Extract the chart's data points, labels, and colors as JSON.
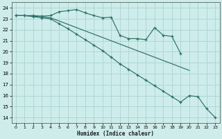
{
  "xlabel": "Humidex (Indice chaleur)",
  "bg_color": "#ceecea",
  "grid_color": "#aad8d4",
  "line_color": "#2d7068",
  "xlim": [
    -0.5,
    23.5
  ],
  "ylim": [
    13.5,
    24.5
  ],
  "xticks": [
    0,
    1,
    2,
    3,
    4,
    5,
    6,
    7,
    8,
    9,
    10,
    11,
    12,
    13,
    14,
    15,
    16,
    17,
    18,
    19,
    20,
    21,
    22,
    23
  ],
  "yticks": [
    14,
    15,
    16,
    17,
    18,
    19,
    20,
    21,
    22,
    23,
    24
  ],
  "series1_y": [
    23.3,
    23.3,
    23.3,
    23.25,
    23.3,
    23.65,
    23.75,
    23.85,
    23.55,
    23.3,
    23.1,
    23.15,
    21.5,
    21.2,
    21.2,
    21.1,
    22.2,
    21.5,
    21.4,
    19.85,
    null,
    null,
    null,
    null
  ],
  "series2_y": [
    23.3,
    23.3,
    23.25,
    23.2,
    23.1,
    22.8,
    22.5,
    22.2,
    21.9,
    21.6,
    21.3,
    21.0,
    20.7,
    20.4,
    20.1,
    19.8,
    19.5,
    19.2,
    18.9,
    18.6,
    18.3,
    null,
    null,
    null
  ],
  "series3_y": [
    23.3,
    23.3,
    23.2,
    23.1,
    23.0,
    22.55,
    22.1,
    21.6,
    21.1,
    20.6,
    20.1,
    19.5,
    18.9,
    18.4,
    17.9,
    17.4,
    16.9,
    16.4,
    15.9,
    15.4,
    16.0,
    15.9,
    14.8,
    14.0
  ]
}
